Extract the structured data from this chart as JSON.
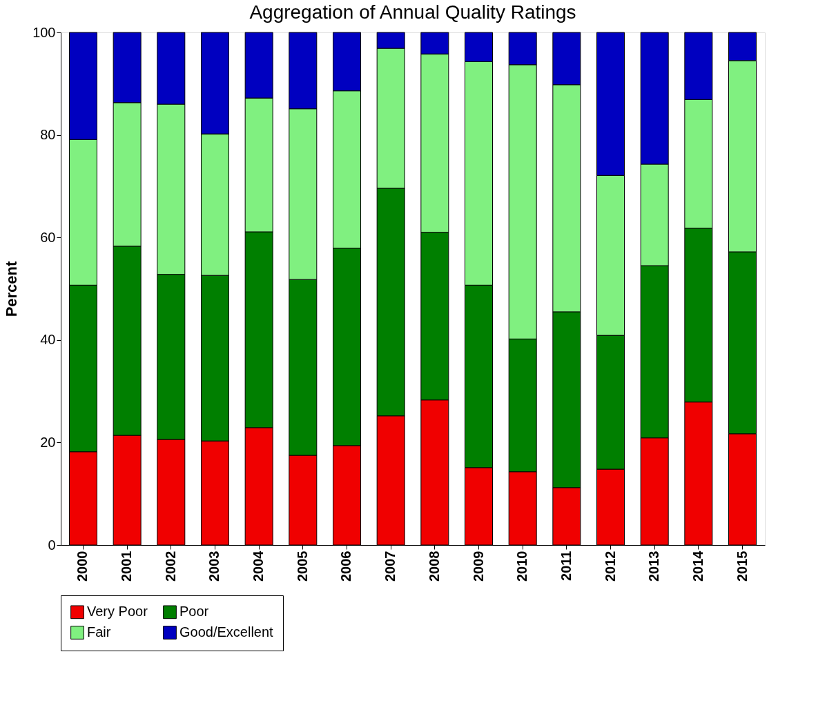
{
  "chart_data": {
    "type": "bar",
    "title": "Aggregation of Annual Quality Ratings",
    "ylabel": "Percent",
    "stacked": true,
    "legend": "bottom",
    "grid": false,
    "categories": [
      "2000",
      "2001",
      "2002",
      "2003",
      "2004",
      "2005",
      "2006",
      "2007",
      "2008",
      "2009",
      "2010",
      "2011",
      "2012",
      "2013",
      "2014",
      "2015"
    ],
    "ylim": [
      0,
      100
    ],
    "yticks": [
      0,
      20,
      40,
      60,
      80,
      100
    ],
    "series": [
      {
        "name": "Very Poor",
        "color": "#f00000",
        "values": [
          18.2,
          21.4,
          20.6,
          20.3,
          22.9,
          17.5,
          19.4,
          25.2,
          28.3,
          15.1,
          14.3,
          11.2,
          14.8,
          20.9,
          27.9,
          21.7
        ]
      },
      {
        "name": "Poor",
        "color": "#007f00",
        "values": [
          32.5,
          36.9,
          32.2,
          32.3,
          38.2,
          34.3,
          38.5,
          44.4,
          32.7,
          35.6,
          25.9,
          34.3,
          26.1,
          33.6,
          33.9,
          35.5
        ]
      },
      {
        "name": "Fair",
        "color": "#80f080",
        "values": [
          28.4,
          28.0,
          33.2,
          27.6,
          26.1,
          33.3,
          30.7,
          27.3,
          34.8,
          43.6,
          53.5,
          44.3,
          31.2,
          19.8,
          25.1,
          37.3
        ]
      },
      {
        "name": "Good/Excellent",
        "color": "#0000c0",
        "values": [
          20.9,
          13.7,
          14.0,
          19.8,
          12.8,
          14.9,
          11.4,
          3.1,
          4.2,
          5.7,
          6.3,
          10.2,
          27.9,
          25.7,
          13.1,
          5.5
        ]
      }
    ]
  }
}
